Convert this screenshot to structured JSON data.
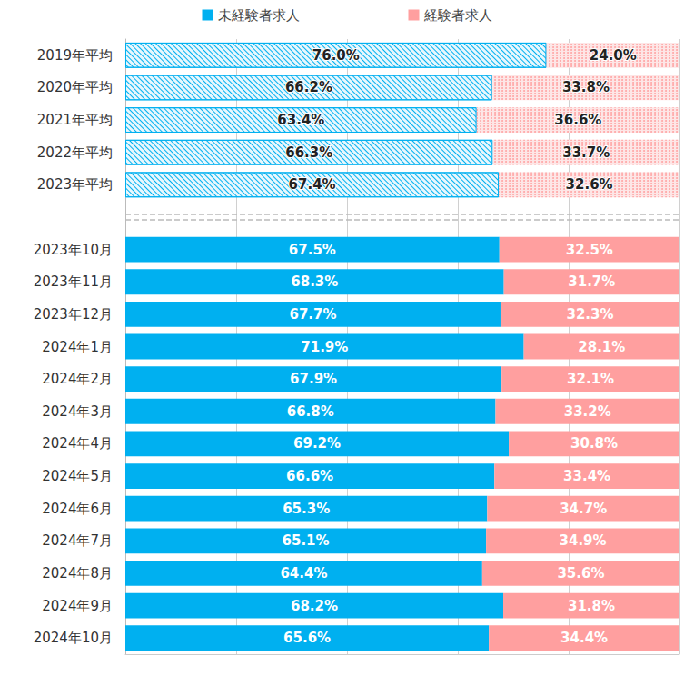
{
  "chart_data": {
    "type": "bar",
    "orientation": "horizontal",
    "stacked": true,
    "data_labels": true,
    "grid": true,
    "legend": "top",
    "tick_labels": "y",
    "xlim": [
      0,
      100
    ],
    "xticks": [
      0,
      20,
      40,
      60,
      80,
      100
    ],
    "categories": [
      "2019年平均",
      "2020年平均",
      "2021年平均",
      "2022年平均",
      "2023年平均",
      null,
      "2023年10月",
      "2023年11月",
      "2023年12月",
      "2024年1月",
      "2024年2月",
      "2024年3月",
      "2024年4月",
      "2024年5月",
      "2024年6月",
      "2024年7月",
      "2024年8月",
      "2024年9月",
      "2024年10月"
    ],
    "series": [
      {
        "name": "未経験者求人",
        "color": "#00b0f0",
        "values": [
          76.0,
          66.2,
          63.4,
          66.3,
          67.4,
          null,
          67.5,
          68.3,
          67.7,
          71.9,
          67.9,
          66.8,
          69.2,
          66.6,
          65.3,
          65.1,
          64.4,
          68.2,
          65.6
        ],
        "value_labels": [
          "76.0%",
          "66.2%",
          "63.4%",
          "66.3%",
          "67.4%",
          null,
          "67.5%",
          "68.3%",
          "67.7%",
          "71.9%",
          "67.9%",
          "66.8%",
          "69.2%",
          "66.6%",
          "65.3%",
          "65.1%",
          "64.4%",
          "68.2%",
          "65.6%"
        ]
      },
      {
        "name": "経験者求人",
        "color": "#ff9f9f",
        "values": [
          24.0,
          33.8,
          36.6,
          33.7,
          32.6,
          null,
          32.5,
          31.7,
          32.3,
          28.1,
          32.1,
          33.2,
          30.8,
          33.4,
          34.7,
          34.9,
          35.6,
          31.8,
          34.4
        ],
        "value_labels": [
          "24.0%",
          "33.8%",
          "36.6%",
          "33.7%",
          "32.6%",
          null,
          "32.5%",
          "31.7%",
          "32.3%",
          "28.1%",
          "32.1%",
          "33.2%",
          "30.8%",
          "33.4%",
          "34.7%",
          "34.9%",
          "35.6%",
          "31.8%",
          "34.4%"
        ]
      }
    ]
  }
}
